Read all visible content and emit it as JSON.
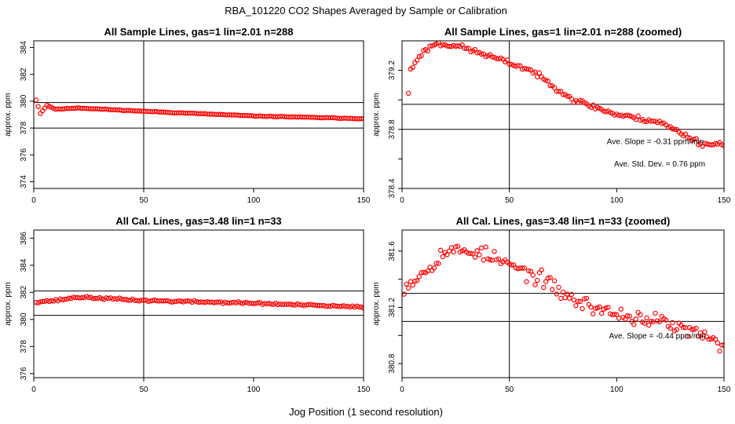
{
  "figure": {
    "title": "RBA_101220  CO2 Shapes Averaged by Sample or Calibration",
    "xlabel": "Jog Position (1 second resolution)"
  },
  "colors": {
    "points": "#ff0000",
    "axes": "#000000",
    "background": "#ffffff"
  },
  "chart_data": [
    {
      "type": "scatter",
      "title": "All Sample Lines, gas=1 lin=2.01 n=288",
      "xlabel": "",
      "ylabel": "approx. ppm",
      "xlim": [
        0,
        150
      ],
      "ylim": [
        373.5,
        384.5
      ],
      "xticks": [
        0,
        50,
        100,
        150
      ],
      "yticks": [
        374,
        376,
        378,
        380,
        382,
        384
      ],
      "ref_x": 50,
      "ref_y": [
        378.0,
        379.9
      ],
      "series": [
        {
          "name": "sample",
          "model": "noisy_trend",
          "anchors": [
            [
              1,
              380.1
            ],
            [
              3,
              379.1
            ],
            [
              6,
              379.7
            ],
            [
              10,
              379.4
            ],
            [
              20,
              379.5
            ],
            [
              50,
              379.25
            ],
            [
              100,
              378.9
            ],
            [
              150,
              378.7
            ]
          ],
          "noise": 0.04,
          "seed": 11
        }
      ],
      "annotations": []
    },
    {
      "type": "scatter",
      "title": "All Sample Lines, gas=1 lin=2.01 n=288 (zoomed)",
      "xlabel": "",
      "ylabel": "approx. ppm",
      "xlim": [
        0,
        150
      ],
      "ylim": [
        378.4,
        379.4
      ],
      "xticks": [
        0,
        50,
        100,
        150
      ],
      "yticks": [
        378.4,
        378.6,
        378.8,
        379.0,
        379.2
      ],
      "ytick_labels": [
        "378.4",
        "",
        "378.8",
        "",
        "379.2"
      ],
      "ref_x": 50,
      "ref_y": [
        378.8,
        378.97
      ],
      "series": [
        {
          "name": "sample-zoomed",
          "model": "noisy_trend",
          "anchors": [
            [
              3,
              379.05
            ],
            [
              4,
              379.2
            ],
            [
              8,
              379.3
            ],
            [
              15,
              379.38
            ],
            [
              25,
              379.37
            ],
            [
              40,
              379.3
            ],
            [
              60,
              379.2
            ],
            [
              70,
              379.1
            ],
            [
              80,
              379.0
            ],
            [
              100,
              378.9
            ],
            [
              120,
              378.85
            ],
            [
              140,
              378.7
            ],
            [
              150,
              378.7
            ]
          ],
          "noise": 0.025,
          "seed": 23
        }
      ],
      "annotations": [
        {
          "text": "Ave. Slope =  -0.31  ppm/min",
          "x": 118,
          "y": 378.7
        },
        {
          "text": "Ave. Std. Dev. =  0.76  ppm",
          "x": 120,
          "y": 378.55
        }
      ]
    },
    {
      "type": "scatter",
      "title": "All Cal. Lines, gas=3.48 lin=1 n=33",
      "xlabel": "",
      "ylabel": "approx. ppm",
      "xlim": [
        0,
        150
      ],
      "ylim": [
        375.7,
        386.6
      ],
      "xticks": [
        0,
        50,
        100,
        150
      ],
      "yticks": [
        376,
        378,
        380,
        382,
        384,
        386
      ],
      "ref_x": 50,
      "ref_y": [
        380.3,
        382.1
      ],
      "series": [
        {
          "name": "calibration",
          "model": "noisy_trend",
          "anchors": [
            [
              1,
              381.3
            ],
            [
              10,
              381.4
            ],
            [
              20,
              381.65
            ],
            [
              50,
              381.4
            ],
            [
              100,
              381.2
            ],
            [
              150,
              380.9
            ]
          ],
          "noise": 0.12,
          "seed": 37
        }
      ],
      "annotations": []
    },
    {
      "type": "scatter",
      "title": "All Cal. Lines, gas=3.48 lin=1 n=33 (zoomed)",
      "xlabel": "",
      "ylabel": "approx. ppm",
      "xlim": [
        0,
        150
      ],
      "ylim": [
        380.7,
        381.75
      ],
      "xticks": [
        0,
        50,
        100,
        150
      ],
      "yticks": [
        380.8,
        381.0,
        381.2,
        381.4,
        381.6
      ],
      "ytick_labels": [
        "380.8",
        "",
        "381.2",
        "",
        "381.6"
      ],
      "ref_x": 50,
      "ref_y": [
        381.1,
        381.3
      ],
      "series": [
        {
          "name": "calibration-zoomed",
          "model": "noisy_trend",
          "anchors": [
            [
              1,
              381.35
            ],
            [
              10,
              381.45
            ],
            [
              20,
              381.6
            ],
            [
              35,
              381.6
            ],
            [
              50,
              381.5
            ],
            [
              65,
              381.4
            ],
            [
              80,
              381.25
            ],
            [
              100,
              381.15
            ],
            [
              120,
              381.1
            ],
            [
              140,
              381.0
            ],
            [
              150,
              380.9
            ]
          ],
          "noise": 0.08,
          "seed": 53
        }
      ],
      "annotations": [
        {
          "text": "Ave. Slope =  -0.44  ppm/min",
          "x": 119,
          "y": 380.98
        }
      ]
    }
  ]
}
